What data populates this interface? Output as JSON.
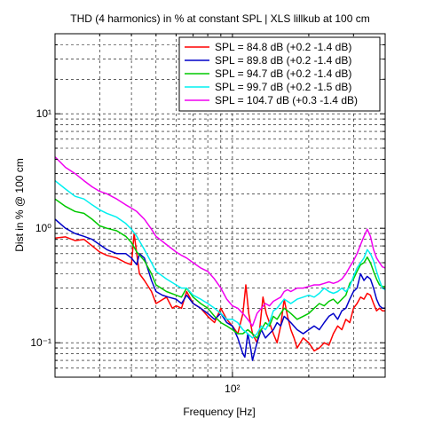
{
  "chart_data": {
    "type": "line",
    "title": "THD (4 harmonics) in % at constant SPL | XLS lillkub at 100 cm",
    "xlabel": "Frequency [Hz]",
    "ylabel": "Dist in % @ 100 cm",
    "xscale": "log",
    "yscale": "log",
    "xlim": [
      20,
      400
    ],
    "ylim": [
      0.05,
      50
    ],
    "grid": true,
    "legend_position": "top-right",
    "x_ticks": [
      {
        "value": 100,
        "label": "10²"
      }
    ],
    "y_ticks": [
      {
        "value": 0.1,
        "label": "10⁻¹"
      },
      {
        "value": 1,
        "label": "10⁰"
      },
      {
        "value": 10,
        "label": "10¹"
      }
    ],
    "series": [
      {
        "name": "SPL = 84.8 dB (+0.2 -1.4 dB)",
        "color": "#ff0000",
        "x": [
          20,
          22,
          24,
          26,
          28,
          30,
          32,
          35,
          38,
          40,
          41,
          42,
          43,
          45,
          48,
          50,
          55,
          58,
          60,
          63,
          66,
          70,
          75,
          80,
          85,
          90,
          95,
          100,
          105,
          110,
          113,
          116,
          120,
          125,
          128,
          132,
          136,
          140,
          145,
          150,
          155,
          160,
          165,
          170,
          175,
          180,
          190,
          200,
          210,
          220,
          230,
          240,
          250,
          260,
          270,
          280,
          290,
          300,
          310,
          320,
          330,
          340,
          350,
          360,
          370,
          380,
          390,
          400
        ],
        "y": [
          0.82,
          0.84,
          0.78,
          0.8,
          0.7,
          0.62,
          0.58,
          0.55,
          0.5,
          0.48,
          0.9,
          0.6,
          0.4,
          0.35,
          0.28,
          0.22,
          0.25,
          0.2,
          0.21,
          0.2,
          0.28,
          0.22,
          0.2,
          0.17,
          0.15,
          0.2,
          0.16,
          0.14,
          0.12,
          0.18,
          0.32,
          0.18,
          0.12,
          0.1,
          0.13,
          0.25,
          0.18,
          0.15,
          0.12,
          0.1,
          0.14,
          0.24,
          0.17,
          0.13,
          0.11,
          0.09,
          0.11,
          0.1,
          0.085,
          0.09,
          0.1,
          0.095,
          0.12,
          0.14,
          0.13,
          0.16,
          0.15,
          0.2,
          0.22,
          0.25,
          0.24,
          0.27,
          0.26,
          0.22,
          0.19,
          0.2,
          0.19,
          0.19
        ]
      },
      {
        "name": "SPL = 89.8 dB (+0.2 -1.4 dB)",
        "color": "#0000c8",
        "x": [
          20,
          22,
          24,
          26,
          28,
          30,
          32,
          35,
          38,
          40,
          42,
          43,
          45,
          48,
          50,
          53,
          56,
          60,
          63,
          66,
          70,
          75,
          80,
          85,
          90,
          95,
          100,
          105,
          110,
          112,
          115,
          118,
          120,
          125,
          130,
          135,
          140,
          145,
          150,
          155,
          160,
          165,
          170,
          180,
          190,
          200,
          210,
          220,
          230,
          240,
          250,
          260,
          270,
          280,
          290,
          300,
          310,
          320,
          330,
          340,
          350,
          360,
          370,
          380,
          390,
          400
        ],
        "y": [
          1.2,
          1.0,
          0.9,
          0.85,
          0.8,
          0.72,
          0.65,
          0.6,
          0.6,
          0.55,
          0.48,
          0.6,
          0.55,
          0.35,
          0.28,
          0.26,
          0.25,
          0.24,
          0.22,
          0.26,
          0.22,
          0.2,
          0.18,
          0.16,
          0.18,
          0.15,
          0.14,
          0.11,
          0.08,
          0.075,
          0.12,
          0.09,
          0.07,
          0.1,
          0.13,
          0.11,
          0.12,
          0.13,
          0.15,
          0.14,
          0.17,
          0.16,
          0.15,
          0.13,
          0.12,
          0.13,
          0.14,
          0.13,
          0.15,
          0.17,
          0.18,
          0.16,
          0.19,
          0.2,
          0.24,
          0.28,
          0.3,
          0.4,
          0.35,
          0.38,
          0.36,
          0.3,
          0.24,
          0.21,
          0.2,
          0.2
        ]
      },
      {
        "name": "SPL = 94.7 dB (+0.2 -1.4 dB)",
        "color": "#00c800",
        "x": [
          20,
          22,
          24,
          26,
          28,
          30,
          32,
          35,
          38,
          40,
          42,
          45,
          48,
          50,
          55,
          60,
          63,
          66,
          70,
          75,
          80,
          85,
          90,
          95,
          100,
          105,
          110,
          115,
          120,
          125,
          130,
          135,
          140,
          145,
          150,
          155,
          160,
          165,
          170,
          180,
          190,
          200,
          210,
          220,
          230,
          240,
          250,
          260,
          270,
          280,
          290,
          300,
          310,
          320,
          330,
          340,
          350,
          360,
          370,
          380,
          390,
          400
        ],
        "y": [
          1.8,
          1.55,
          1.4,
          1.35,
          1.2,
          1.05,
          1.0,
          0.95,
          0.85,
          0.75,
          0.62,
          0.52,
          0.4,
          0.32,
          0.28,
          0.26,
          0.25,
          0.3,
          0.25,
          0.22,
          0.2,
          0.17,
          0.15,
          0.14,
          0.13,
          0.12,
          0.12,
          0.13,
          0.12,
          0.11,
          0.13,
          0.15,
          0.14,
          0.17,
          0.16,
          0.18,
          0.2,
          0.19,
          0.18,
          0.16,
          0.17,
          0.18,
          0.2,
          0.22,
          0.21,
          0.23,
          0.24,
          0.22,
          0.24,
          0.26,
          0.33,
          0.36,
          0.42,
          0.48,
          0.5,
          0.56,
          0.5,
          0.42,
          0.36,
          0.32,
          0.31,
          0.31
        ]
      },
      {
        "name": "SPL = 99.7 dB (+0.2 -1.5 dB)",
        "color": "#00f0f0",
        "x": [
          20,
          22,
          24,
          26,
          28,
          30,
          32,
          35,
          38,
          40,
          42,
          45,
          48,
          50,
          55,
          60,
          63,
          66,
          70,
          75,
          80,
          85,
          90,
          95,
          100,
          105,
          110,
          115,
          120,
          125,
          130,
          135,
          140,
          145,
          150,
          155,
          160,
          165,
          170,
          180,
          190,
          200,
          210,
          220,
          230,
          240,
          250,
          260,
          270,
          280,
          290,
          300,
          310,
          320,
          330,
          340,
          350,
          360,
          370,
          380,
          390,
          400
        ],
        "y": [
          2.6,
          2.2,
          1.9,
          1.8,
          1.6,
          1.45,
          1.35,
          1.25,
          1.1,
          0.98,
          0.85,
          0.65,
          0.5,
          0.42,
          0.36,
          0.32,
          0.3,
          0.3,
          0.26,
          0.24,
          0.22,
          0.2,
          0.18,
          0.16,
          0.16,
          0.15,
          0.13,
          0.12,
          0.11,
          0.12,
          0.14,
          0.13,
          0.15,
          0.19,
          0.2,
          0.22,
          0.24,
          0.23,
          0.22,
          0.24,
          0.25,
          0.26,
          0.25,
          0.27,
          0.3,
          0.28,
          0.27,
          0.28,
          0.3,
          0.28,
          0.31,
          0.38,
          0.45,
          0.5,
          0.55,
          0.65,
          0.6,
          0.52,
          0.42,
          0.35,
          0.3,
          0.29
        ]
      },
      {
        "name": "SPL = 104.7 dB (+0.3 -1.4 dB)",
        "color": "#f000f0",
        "x": [
          20,
          22,
          24,
          26,
          28,
          30,
          32,
          35,
          38,
          40,
          42,
          45,
          48,
          50,
          55,
          60,
          63,
          66,
          70,
          75,
          80,
          85,
          90,
          95,
          100,
          105,
          110,
          115,
          120,
          125,
          130,
          135,
          140,
          145,
          150,
          155,
          160,
          165,
          170,
          180,
          190,
          200,
          210,
          220,
          230,
          240,
          250,
          260,
          270,
          280,
          290,
          300,
          310,
          320,
          330,
          340,
          350,
          360,
          370,
          380,
          390,
          400
        ],
        "y": [
          4.2,
          3.4,
          3.0,
          2.6,
          2.3,
          2.1,
          2.0,
          1.8,
          1.6,
          1.5,
          1.4,
          1.2,
          0.98,
          0.85,
          0.72,
          0.62,
          0.58,
          0.55,
          0.5,
          0.45,
          0.42,
          0.36,
          0.3,
          0.24,
          0.21,
          0.2,
          0.18,
          0.16,
          0.14,
          0.18,
          0.2,
          0.22,
          0.21,
          0.23,
          0.24,
          0.25,
          0.28,
          0.29,
          0.28,
          0.3,
          0.3,
          0.31,
          0.32,
          0.32,
          0.33,
          0.34,
          0.33,
          0.34,
          0.36,
          0.4,
          0.46,
          0.52,
          0.6,
          0.72,
          0.85,
          0.98,
          0.85,
          0.65,
          0.55,
          0.5,
          0.46,
          0.45
        ]
      }
    ]
  }
}
